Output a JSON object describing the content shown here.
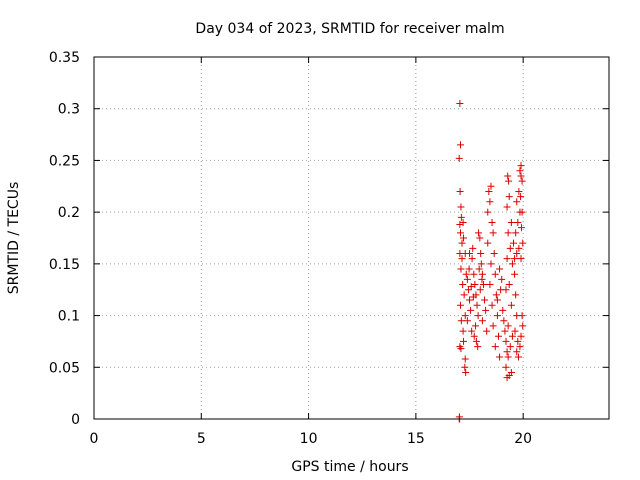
{
  "chart_data": {
    "type": "scatter",
    "title": "Day 034 of 2023, SRMTID for receiver malm",
    "xlabel": "GPS time / hours",
    "ylabel": "SRMTID / TECUs",
    "xlim": [
      0,
      24
    ],
    "ylim": [
      0,
      0.35
    ],
    "xticks": [
      0,
      5,
      10,
      15,
      20
    ],
    "xtick_labels": [
      "0",
      "5",
      "10",
      "15",
      "20"
    ],
    "yticks": [
      0,
      0.05,
      0.1,
      0.15,
      0.2,
      0.25,
      0.3,
      0.35
    ],
    "ytick_labels": [
      "0",
      "0.05",
      "0.1",
      "0.15",
      "0.2",
      "0.25",
      "0.3",
      "0.35"
    ],
    "grid": true,
    "marker": "+",
    "color": "#dd0000",
    "series": [
      {
        "name": "SRMTID",
        "points": [
          [
            17.02,
            0.0
          ],
          [
            17.03,
            0.002
          ],
          [
            17.04,
            0.0
          ],
          [
            17.05,
            0.305
          ],
          [
            17.08,
            0.265
          ],
          [
            17.02,
            0.252
          ],
          [
            17.06,
            0.22
          ],
          [
            17.1,
            0.205
          ],
          [
            17.05,
            0.188
          ],
          [
            17.12,
            0.195
          ],
          [
            17.2,
            0.19
          ],
          [
            17.08,
            0.18
          ],
          [
            17.15,
            0.17
          ],
          [
            17.22,
            0.175
          ],
          [
            17.05,
            0.16
          ],
          [
            17.3,
            0.16
          ],
          [
            17.1,
            0.145
          ],
          [
            17.18,
            0.13
          ],
          [
            17.25,
            0.12
          ],
          [
            17.08,
            0.11
          ],
          [
            17.3,
            0.1
          ],
          [
            17.12,
            0.095
          ],
          [
            17.2,
            0.085
          ],
          [
            17.05,
            0.07
          ],
          [
            17.1,
            0.068
          ],
          [
            17.3,
            0.058
          ],
          [
            17.28,
            0.05
          ],
          [
            17.32,
            0.045
          ],
          [
            17.22,
            0.075
          ],
          [
            17.15,
            0.155
          ],
          [
            17.35,
            0.14
          ],
          [
            17.4,
            0.135
          ],
          [
            17.45,
            0.125
          ],
          [
            17.5,
            0.115
          ],
          [
            17.55,
            0.105
          ],
          [
            17.4,
            0.095
          ],
          [
            17.6,
            0.085
          ],
          [
            17.48,
            0.145
          ],
          [
            17.62,
            0.155
          ],
          [
            17.7,
            0.14
          ],
          [
            17.75,
            0.13
          ],
          [
            17.8,
            0.12
          ],
          [
            17.85,
            0.11
          ],
          [
            17.9,
            0.1
          ],
          [
            17.78,
            0.09
          ],
          [
            17.72,
            0.08
          ],
          [
            17.82,
            0.075
          ],
          [
            17.88,
            0.07
          ],
          [
            17.65,
            0.165
          ],
          [
            17.92,
            0.18
          ],
          [
            17.98,
            0.175
          ],
          [
            18.02,
            0.16
          ],
          [
            18.05,
            0.15
          ],
          [
            18.1,
            0.14
          ],
          [
            18.15,
            0.13
          ],
          [
            18.0,
            0.125
          ],
          [
            18.2,
            0.115
          ],
          [
            18.25,
            0.105
          ],
          [
            18.1,
            0.095
          ],
          [
            18.3,
            0.085
          ],
          [
            17.95,
            0.145
          ],
          [
            18.08,
            0.135
          ],
          [
            17.58,
            0.128
          ],
          [
            17.68,
            0.118
          ],
          [
            17.5,
            0.16
          ],
          [
            18.35,
            0.2
          ],
          [
            18.4,
            0.22
          ],
          [
            18.5,
            0.225
          ],
          [
            18.45,
            0.21
          ],
          [
            18.55,
            0.19
          ],
          [
            18.6,
            0.18
          ],
          [
            18.35,
            0.17
          ],
          [
            18.65,
            0.16
          ],
          [
            18.5,
            0.15
          ],
          [
            18.7,
            0.14
          ],
          [
            18.45,
            0.13
          ],
          [
            18.75,
            0.12
          ],
          [
            18.55,
            0.11
          ],
          [
            18.8,
            0.1
          ],
          [
            18.6,
            0.09
          ],
          [
            18.85,
            0.08
          ],
          [
            18.7,
            0.07
          ],
          [
            18.9,
            0.06
          ],
          [
            18.8,
            0.115
          ],
          [
            18.95,
            0.125
          ],
          [
            19.0,
            0.135
          ],
          [
            18.9,
            0.145
          ],
          [
            19.05,
            0.105
          ],
          [
            19.1,
            0.095
          ],
          [
            19.15,
            0.085
          ],
          [
            19.2,
            0.075
          ],
          [
            19.25,
            0.065
          ],
          [
            19.2,
            0.05
          ],
          [
            19.25,
            0.04
          ],
          [
            19.35,
            0.042
          ],
          [
            19.45,
            0.045
          ],
          [
            19.3,
            0.06
          ],
          [
            19.4,
            0.07
          ],
          [
            19.5,
            0.08
          ],
          [
            19.3,
            0.09
          ],
          [
            19.45,
            0.11
          ],
          [
            19.2,
            0.125
          ],
          [
            19.35,
            0.13
          ],
          [
            19.5,
            0.15
          ],
          [
            19.25,
            0.155
          ],
          [
            19.4,
            0.165
          ],
          [
            19.55,
            0.17
          ],
          [
            19.3,
            0.18
          ],
          [
            19.45,
            0.19
          ],
          [
            19.25,
            0.205
          ],
          [
            19.35,
            0.215
          ],
          [
            19.28,
            0.235
          ],
          [
            19.32,
            0.23
          ],
          [
            19.6,
            0.155
          ],
          [
            19.7,
            0.16
          ],
          [
            19.8,
            0.165
          ],
          [
            19.65,
            0.18
          ],
          [
            19.75,
            0.19
          ],
          [
            19.85,
            0.2
          ],
          [
            19.7,
            0.21
          ],
          [
            19.8,
            0.22
          ],
          [
            19.9,
            0.235
          ],
          [
            19.85,
            0.24
          ],
          [
            19.9,
            0.245
          ],
          [
            19.95,
            0.23
          ],
          [
            19.88,
            0.215
          ],
          [
            19.95,
            0.2
          ],
          [
            19.92,
            0.185
          ],
          [
            19.98,
            0.17
          ],
          [
            19.9,
            0.155
          ],
          [
            19.95,
            0.1
          ],
          [
            19.98,
            0.09
          ],
          [
            19.6,
            0.14
          ],
          [
            19.65,
            0.12
          ],
          [
            19.7,
            0.1
          ],
          [
            19.62,
            0.085
          ],
          [
            19.75,
            0.075
          ],
          [
            19.7,
            0.065
          ],
          [
            19.78,
            0.06
          ],
          [
            19.85,
            0.07
          ],
          [
            19.9,
            0.08
          ]
        ]
      }
    ]
  }
}
